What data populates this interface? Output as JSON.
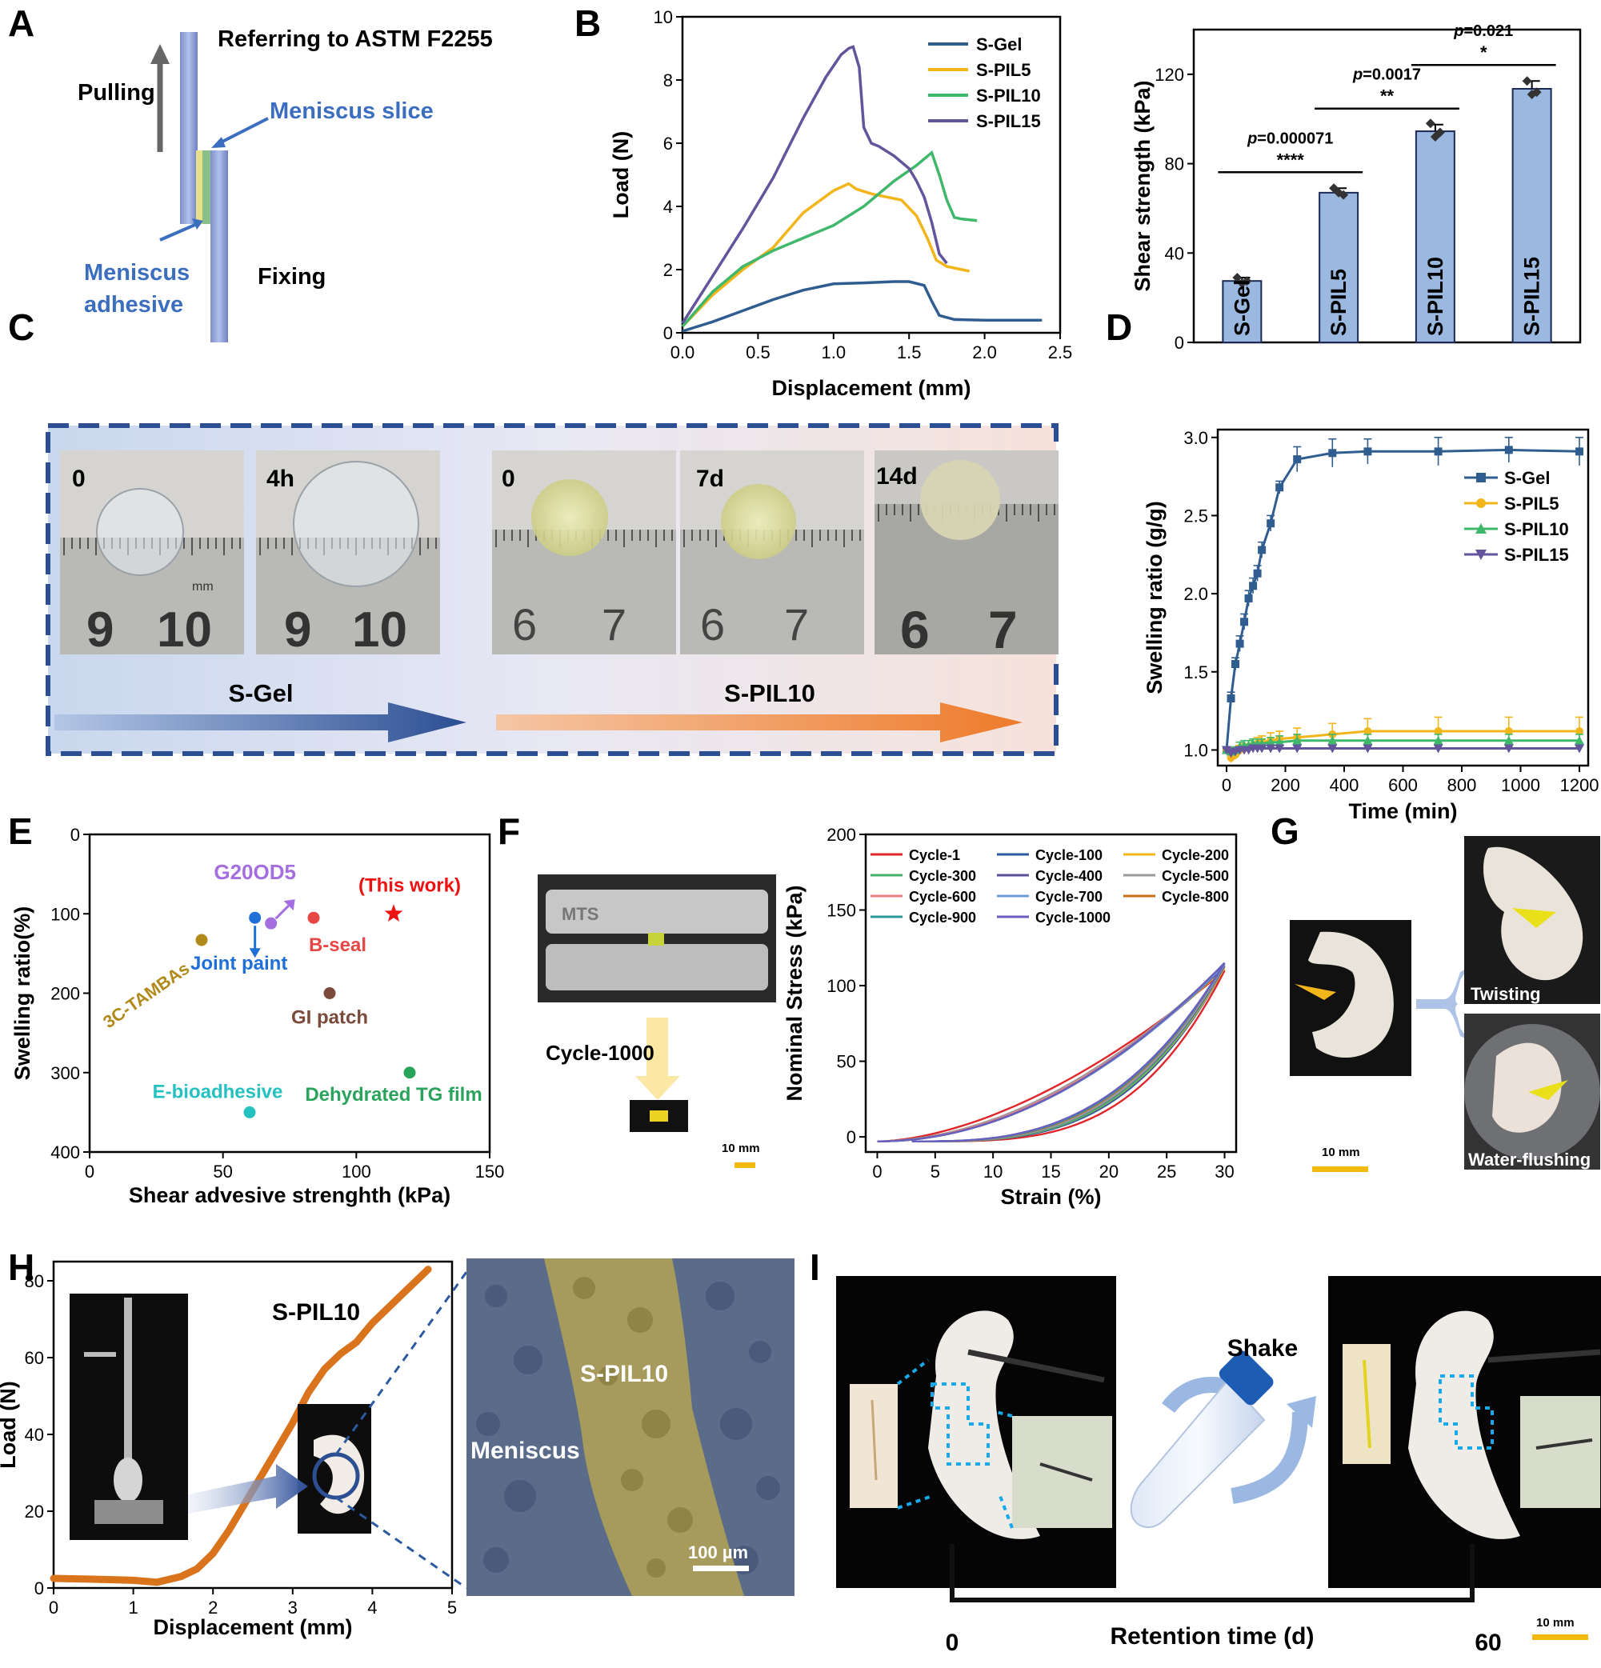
{
  "colors": {
    "sgel": "#2f5d8f",
    "spil5": "#f2b51a",
    "spil10": "#3fb86c",
    "spil15": "#63549b",
    "bar": "#9bb9e0",
    "orange": "#d9741c"
  },
  "panels": {
    "A": "A",
    "B": "B",
    "C": "C",
    "D": "D",
    "E": "E",
    "F": "F",
    "G": "G",
    "H": "H",
    "I": "I"
  },
  "panelA": {
    "title": "Referring to ASTM F2255",
    "pulling": "Pulling",
    "slice": "Meniscus slice",
    "adhesive_1": "Meniscus",
    "adhesive_2": "adhesive",
    "fixing": "Fixing"
  },
  "panelC": {
    "photo_labels": [
      "0",
      "4h",
      "0",
      "7d",
      "14d"
    ],
    "gel_label": "S-Gel",
    "pil_label": "S-PIL10",
    "ruler_a": [
      "9",
      "10"
    ],
    "ruler_b": [
      "6",
      "7"
    ],
    "ruler_unit": "mm"
  },
  "panelF": {
    "machine_text": "MTS",
    "cycle_label": "Cycle-1000",
    "scale": "10 mm"
  },
  "panelG": {
    "twisting": "Twisting",
    "flushing": "Water-flushing",
    "scale": "10 mm"
  },
  "panelH": {
    "sem_pil": "S-PIL10",
    "sem_men": "Meniscus",
    "sem_scale": "100 µm"
  },
  "panelI": {
    "shake": "Shake",
    "axis_label": "Retention time (d)",
    "start": "0",
    "end": "60",
    "scale": "10 mm"
  },
  "chart_data": [
    {
      "id": "B1",
      "type": "line",
      "xlabel": "Displacement (mm)",
      "ylabel": "Load (N)",
      "xlim": [
        0,
        2.5
      ],
      "ylim": [
        0,
        10
      ],
      "xticks": [
        "0.0",
        "0.5",
        "1.0",
        "1.5",
        "2.0",
        "2.5"
      ],
      "yticks": [
        "0",
        "2",
        "4",
        "6",
        "8",
        "10"
      ],
      "legend_position": "top-right",
      "series": [
        {
          "name": "S-Gel",
          "color": "#2f5d8f",
          "x": [
            0,
            0.2,
            0.4,
            0.6,
            0.8,
            1.0,
            1.2,
            1.4,
            1.5,
            1.6,
            1.65,
            1.7,
            1.8,
            2.0,
            2.2,
            2.38
          ],
          "y": [
            0.05,
            0.35,
            0.7,
            1.05,
            1.35,
            1.55,
            1.58,
            1.62,
            1.62,
            1.5,
            1.0,
            0.55,
            0.42,
            0.4,
            0.4,
            0.4
          ]
        },
        {
          "name": "S-PIL5",
          "color": "#f2b51a",
          "x": [
            0,
            0.2,
            0.4,
            0.6,
            0.8,
            1.0,
            1.1,
            1.15,
            1.25,
            1.35,
            1.45,
            1.55,
            1.62,
            1.68,
            1.75,
            1.85,
            1.9
          ],
          "y": [
            0.2,
            1.2,
            2.0,
            2.7,
            3.8,
            4.5,
            4.72,
            4.55,
            4.4,
            4.3,
            4.2,
            3.7,
            3.0,
            2.3,
            2.1,
            2.0,
            1.95
          ]
        },
        {
          "name": "S-PIL10",
          "color": "#3fb86c",
          "x": [
            0,
            0.2,
            0.4,
            0.6,
            0.8,
            1.0,
            1.2,
            1.4,
            1.55,
            1.65,
            1.7,
            1.75,
            1.8,
            1.85,
            1.95
          ],
          "y": [
            0.2,
            1.3,
            2.1,
            2.6,
            3.0,
            3.4,
            4.0,
            4.8,
            5.3,
            5.7,
            5.0,
            4.2,
            3.65,
            3.6,
            3.55
          ]
        },
        {
          "name": "S-PIL15",
          "color": "#63549b",
          "x": [
            0,
            0.2,
            0.4,
            0.6,
            0.8,
            0.95,
            1.05,
            1.1,
            1.13,
            1.17,
            1.2,
            1.25,
            1.3,
            1.4,
            1.5,
            1.55,
            1.6,
            1.65,
            1.7,
            1.75
          ],
          "y": [
            0.3,
            1.8,
            3.3,
            4.9,
            6.8,
            8.1,
            8.8,
            9.0,
            9.05,
            8.4,
            6.5,
            6.0,
            5.9,
            5.6,
            5.2,
            4.8,
            4.3,
            3.5,
            2.5,
            2.2
          ]
        }
      ]
    },
    {
      "id": "B2",
      "type": "bar",
      "ylabel": "Shear strength (kPa)",
      "ylim": [
        0,
        140
      ],
      "yticks": [
        "0",
        "40",
        "80",
        "120"
      ],
      "categories": [
        "S-Gel",
        "S-PIL5",
        "S-PIL10",
        "S-PIL15"
      ],
      "values": [
        27.5,
        67,
        94.5,
        113.5
      ],
      "errors": [
        1.5,
        2,
        3,
        3.5
      ],
      "points": [
        [
          29,
          27.5,
          26.5
        ],
        [
          69,
          66,
          67
        ],
        [
          98,
          94,
          92
        ],
        [
          117,
          112,
          111
        ]
      ],
      "significance": [
        {
          "p": "0.000071",
          "stars": "****"
        },
        {
          "p": "0.0017",
          "stars": "**"
        },
        {
          "p": "0.021",
          "stars": "*"
        }
      ]
    },
    {
      "id": "D",
      "type": "line",
      "xlabel": "Time (min)",
      "ylabel": "Swelling ratio (g/g)",
      "xlim": [
        -30,
        1230
      ],
      "ylim": [
        0.9,
        3.05
      ],
      "xticks": [
        "0",
        "200",
        "400",
        "600",
        "800",
        "1000",
        "1200"
      ],
      "yticks": [
        "1.0",
        "1.5",
        "2.0",
        "2.5",
        "3.0"
      ],
      "legend_position": "top-right",
      "series": [
        {
          "name": "S-Gel",
          "color": "#2f5d8f",
          "marker": "square",
          "x": [
            0,
            15,
            30,
            45,
            60,
            75,
            90,
            105,
            120,
            150,
            180,
            240,
            360,
            480,
            720,
            960,
            1200
          ],
          "y": [
            1.0,
            1.33,
            1.55,
            1.68,
            1.82,
            1.97,
            2.05,
            2.13,
            2.28,
            2.45,
            2.68,
            2.86,
            2.9,
            2.91,
            2.91,
            2.92,
            2.91
          ],
          "err": [
            0.02,
            0.04,
            0.04,
            0.05,
            0.05,
            0.05,
            0.05,
            0.05,
            0.05,
            0.05,
            0.04,
            0.08,
            0.09,
            0.08,
            0.09,
            0.08,
            0.09
          ]
        },
        {
          "name": "S-PIL5",
          "color": "#f2b51a",
          "marker": "circle",
          "x": [
            0,
            15,
            30,
            45,
            60,
            75,
            90,
            105,
            120,
            150,
            180,
            240,
            360,
            480,
            720,
            960,
            1200
          ],
          "y": [
            1.0,
            0.95,
            0.97,
            1.0,
            1.01,
            1.02,
            1.03,
            1.04,
            1.05,
            1.06,
            1.07,
            1.08,
            1.1,
            1.12,
            1.12,
            1.12,
            1.12
          ],
          "err": [
            0.02,
            0.03,
            0.03,
            0.03,
            0.03,
            0.04,
            0.04,
            0.04,
            0.04,
            0.05,
            0.05,
            0.06,
            0.07,
            0.08,
            0.09,
            0.09,
            0.09
          ]
        },
        {
          "name": "S-PIL10",
          "color": "#3fb86c",
          "marker": "triangle",
          "x": [
            0,
            15,
            30,
            45,
            60,
            75,
            90,
            105,
            120,
            150,
            180,
            240,
            360,
            480,
            720,
            960,
            1200
          ],
          "y": [
            1.0,
            0.99,
            1.0,
            1.02,
            1.03,
            1.03,
            1.04,
            1.04,
            1.04,
            1.05,
            1.05,
            1.06,
            1.06,
            1.06,
            1.06,
            1.06,
            1.06
          ],
          "err": [
            0.02,
            0.02,
            0.02,
            0.03,
            0.03,
            0.03,
            0.03,
            0.03,
            0.03,
            0.03,
            0.04,
            0.04,
            0.04,
            0.04,
            0.04,
            0.04,
            0.04
          ]
        },
        {
          "name": "S-PIL15",
          "color": "#63549b",
          "marker": "triangle-down",
          "x": [
            0,
            15,
            30,
            45,
            60,
            75,
            90,
            105,
            120,
            150,
            180,
            240,
            360,
            480,
            720,
            960,
            1200
          ],
          "y": [
            1.0,
            0.98,
            0.99,
            1.0,
            1.0,
            1.0,
            1.01,
            1.01,
            1.01,
            1.01,
            1.01,
            1.01,
            1.01,
            1.01,
            1.01,
            1.01,
            1.01
          ],
          "err": [
            0.01,
            0.02,
            0.02,
            0.02,
            0.02,
            0.02,
            0.02,
            0.02,
            0.02,
            0.02,
            0.02,
            0.02,
            0.02,
            0.02,
            0.02,
            0.02,
            0.02
          ]
        }
      ]
    },
    {
      "id": "E",
      "type": "scatter",
      "xlabel": "Shear advesive strenghth (kPa)",
      "ylabel": "Swelling ratio(%)",
      "xlim": [
        0,
        150
      ],
      "ylim": [
        0,
        400
      ],
      "y_inverted": true,
      "xticks": [
        "0",
        "50",
        "100",
        "150"
      ],
      "yticks": [
        "0",
        "100",
        "200",
        "300",
        "400"
      ],
      "points": [
        {
          "label": "3C-TAMBAs",
          "x": 42,
          "y": 133,
          "color": "#b08a1a"
        },
        {
          "label": "G20OD5",
          "x": 68,
          "y": 112,
          "color": "#a46ee0"
        },
        {
          "label": "Joint paint",
          "x": 62,
          "y": 105,
          "color": "#1f6fd8"
        },
        {
          "label": "B-seal",
          "x": 84,
          "y": 105,
          "color": "#e64646"
        },
        {
          "label": "(This work)",
          "x": 114,
          "y": 100,
          "color": "#ee1111",
          "marker": "star"
        },
        {
          "label": "GI patch",
          "x": 90,
          "y": 200,
          "color": "#7a4a3a"
        },
        {
          "label": "Dehydrated TG film",
          "x": 120,
          "y": 300,
          "color": "#2aa35c"
        },
        {
          "label": "E-bioadhesive",
          "x": 60,
          "y": 350,
          "color": "#25c1c1"
        }
      ]
    },
    {
      "id": "F",
      "type": "line",
      "xlabel": "Strain (%)",
      "ylabel": "Nominal Stress (kPa)",
      "xlim": [
        -1,
        31
      ],
      "ylim": [
        -10,
        200
      ],
      "xticks": [
        "0",
        "5",
        "10",
        "15",
        "20",
        "25",
        "30"
      ],
      "yticks": [
        "0",
        "50",
        "100",
        "150",
        "200"
      ],
      "legend_position": "top",
      "series": [
        {
          "name": "Cycle-1",
          "color": "#e0262a",
          "load_exp": 1.7,
          "unload_exp": 3.6,
          "peak": 110
        },
        {
          "name": "Cycle-100",
          "color": "#2c5aa0",
          "load_exp": 1.9,
          "unload_exp": 3.3,
          "peak": 112
        },
        {
          "name": "Cycle-200",
          "color": "#f2b51a",
          "load_exp": 1.9,
          "unload_exp": 3.2,
          "peak": 112
        },
        {
          "name": "Cycle-300",
          "color": "#47b26b",
          "load_exp": 1.9,
          "unload_exp": 3.2,
          "peak": 113
        },
        {
          "name": "Cycle-400",
          "color": "#5a4ea0",
          "load_exp": 1.95,
          "unload_exp": 3.1,
          "peak": 113
        },
        {
          "name": "Cycle-500",
          "color": "#9a9a9a",
          "load_exp": 1.9,
          "unload_exp": 3.1,
          "peak": 114
        },
        {
          "name": "Cycle-600",
          "color": "#ef8080",
          "load_exp": 1.95,
          "unload_exp": 3.0,
          "peak": 114
        },
        {
          "name": "Cycle-700",
          "color": "#6d9bd8",
          "load_exp": 2.0,
          "unload_exp": 3.0,
          "peak": 114
        },
        {
          "name": "Cycle-800",
          "color": "#c86c1a",
          "load_exp": 2.0,
          "unload_exp": 3.0,
          "peak": 115
        },
        {
          "name": "Cycle-900",
          "color": "#2a9a9a",
          "load_exp": 2.0,
          "unload_exp": 2.95,
          "peak": 115
        },
        {
          "name": "Cycle-1000",
          "color": "#6a5ec0",
          "load_exp": 2.0,
          "unload_exp": 2.9,
          "peak": 115
        }
      ]
    },
    {
      "id": "H",
      "type": "line",
      "xlabel": "Displacement (mm)",
      "ylabel": "Load (N)",
      "title": "S-PIL10",
      "xlim": [
        0,
        5
      ],
      "ylim": [
        0,
        85
      ],
      "xticks": [
        "0",
        "1",
        "2",
        "3",
        "4",
        "5"
      ],
      "yticks": [
        "0",
        "20",
        "40",
        "60",
        "80"
      ],
      "series": [
        {
          "name": "",
          "color": "#d9741c",
          "x": [
            0,
            0.5,
            1.0,
            1.3,
            1.6,
            1.8,
            2.0,
            2.2,
            2.4,
            2.6,
            2.8,
            3.0,
            3.2,
            3.4,
            3.6,
            3.8,
            4.0,
            4.2,
            4.4,
            4.6,
            4.7
          ],
          "y": [
            2.5,
            2.3,
            2.0,
            1.5,
            3,
            5,
            9,
            15,
            22,
            29,
            36,
            43,
            51,
            57,
            61,
            64,
            69,
            73,
            77,
            81,
            83
          ]
        }
      ]
    }
  ]
}
